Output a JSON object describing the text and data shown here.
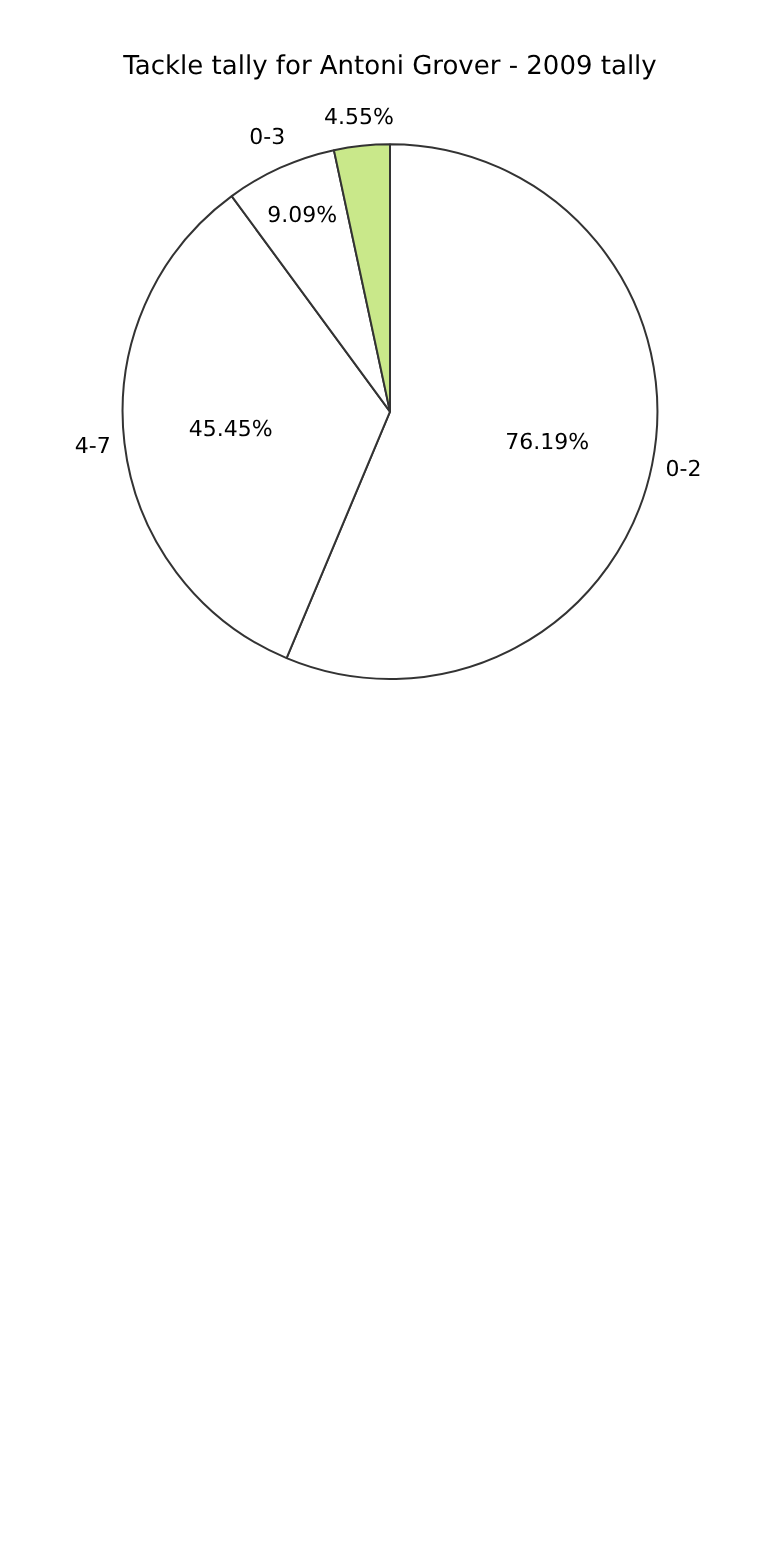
{
  "chart_data": {
    "type": "pie",
    "title": "Tackle tally for Antoni Grover - 2009 tally",
    "categories": [
      "0-2",
      "4-7",
      "0-3",
      null
    ],
    "values": [
      76.19,
      45.45,
      9.09,
      4.55
    ],
    "colors": [
      "#ffffff",
      "#ffffff",
      "#ffffff",
      "#c9e88a"
    ],
    "value_labels": [
      "76.19%",
      "45.45%",
      "9.09%",
      "4.55%"
    ],
    "legend": false
  }
}
